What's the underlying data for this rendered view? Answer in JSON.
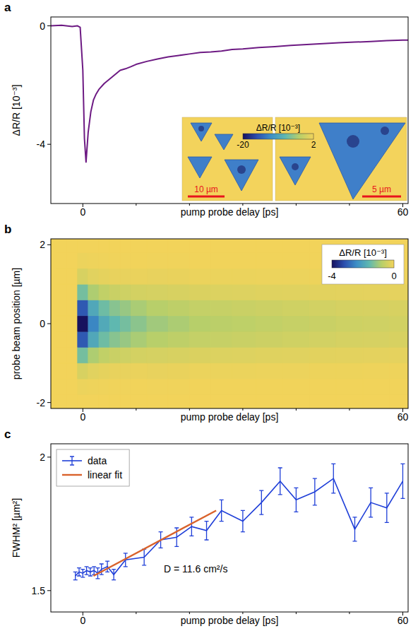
{
  "chart_data": [
    {
      "type": "line",
      "panel_label": "a",
      "x_label": "pump probe delay [ps]",
      "y_label": "ΔR/R [10⁻³]",
      "color": "#6d1a83",
      "x": [
        -6,
        -4,
        -2,
        -1,
        -0.5,
        0,
        0.3,
        0.6,
        1,
        1.5,
        2,
        2.5,
        3,
        4,
        5,
        6,
        7,
        8,
        9,
        10,
        12,
        14,
        16,
        18,
        20,
        22,
        24,
        26,
        28,
        30,
        33,
        36,
        39,
        42,
        45,
        48,
        51,
        54,
        57,
        60,
        61
      ],
      "values": [
        0,
        0.02,
        -0.02,
        0,
        -0.05,
        -1.5,
        -3.8,
        -4.6,
        -3.6,
        -2.9,
        -2.5,
        -2.3,
        -2.15,
        -1.95,
        -1.8,
        -1.65,
        -1.5,
        -1.45,
        -1.38,
        -1.3,
        -1.2,
        -1.12,
        -1.05,
        -1,
        -0.95,
        -0.9,
        -0.88,
        -0.85,
        -0.8,
        -0.78,
        -0.73,
        -0.7,
        -0.66,
        -0.63,
        -0.6,
        -0.57,
        -0.55,
        -0.53,
        -0.5,
        -0.48,
        -0.48
      ],
      "xlim": [
        -6,
        61
      ],
      "ylim": [
        -6,
        0.3
      ],
      "xticks": [
        0,
        60
      ],
      "minor_xticks": [
        10,
        20,
        30,
        40,
        50
      ],
      "yticks": [
        -4,
        0
      ],
      "inset": {
        "colorbar": {
          "label": "ΔR/R [10⁻³]",
          "range": [
            -20,
            2
          ],
          "ticks": [
            -20,
            2
          ]
        },
        "scale_bars": [
          {
            "label": "10 µm",
            "length": 10
          },
          {
            "label": "5 µm",
            "length": 5
          }
        ]
      }
    },
    {
      "type": "heatmap",
      "panel_label": "b",
      "x_label": "pump probe delay [ps]",
      "y_label": "probe beam position [µm]",
      "x": [
        -4,
        -2,
        0,
        2,
        4,
        6,
        8,
        10,
        14,
        18,
        22,
        26,
        30,
        35,
        40,
        45,
        50,
        55,
        60
      ],
      "y": [
        -2,
        -1.6,
        -1.2,
        -0.8,
        -0.4,
        0,
        0.4,
        0.8,
        1.2,
        1.6,
        2
      ],
      "cells": [
        [
          0,
          0,
          0,
          0,
          0,
          0,
          0,
          0,
          0,
          0,
          0,
          0,
          0,
          0,
          0,
          0,
          0,
          0,
          0
        ],
        [
          0,
          0,
          -0.08,
          -0.05,
          -0.04,
          -0.03,
          -0.03,
          -0.02,
          -0.03,
          -0.03,
          -0.02,
          -0.02,
          -0.02,
          -0.02,
          -0.02,
          -0.02,
          -0.02,
          -0.01,
          -0.01
        ],
        [
          0,
          0,
          -0.36,
          -0.23,
          -0.17,
          -0.14,
          -0.13,
          -0.11,
          -0.13,
          -0.12,
          -0.1,
          -0.1,
          -0.09,
          -0.08,
          -0.08,
          -0.07,
          -0.07,
          -0.06,
          -0.06
        ],
        [
          0,
          0,
          -1.4,
          -0.88,
          -0.67,
          -0.56,
          -0.49,
          -0.42,
          -0.4,
          -0.36,
          -0.32,
          -0.3,
          -0.28,
          -0.26,
          -0.24,
          -0.22,
          -0.2,
          -0.19,
          -0.18
        ],
        [
          0,
          0,
          -3.08,
          -1.93,
          -1.46,
          -1.23,
          -1.08,
          -0.92,
          -0.79,
          -0.71,
          -0.63,
          -0.59,
          -0.55,
          -0.51,
          -0.47,
          -0.43,
          -0.4,
          -0.38,
          -0.36
        ],
        [
          0,
          0,
          -4,
          -2.5,
          -1.9,
          -1.6,
          -1.4,
          -1.2,
          -1,
          -0.9,
          -0.8,
          -0.75,
          -0.7,
          -0.65,
          -0.6,
          -0.55,
          -0.5,
          -0.48,
          -0.45
        ],
        [
          0,
          0,
          -3.08,
          -1.93,
          -1.46,
          -1.23,
          -1.08,
          -0.92,
          -0.79,
          -0.71,
          -0.63,
          -0.59,
          -0.55,
          -0.51,
          -0.47,
          -0.43,
          -0.4,
          -0.38,
          -0.36
        ],
        [
          0,
          0,
          -1.4,
          -0.88,
          -0.67,
          -0.56,
          -0.49,
          -0.42,
          -0.4,
          -0.36,
          -0.32,
          -0.3,
          -0.28,
          -0.26,
          -0.24,
          -0.22,
          -0.2,
          -0.19,
          -0.18
        ],
        [
          0,
          0,
          -0.36,
          -0.23,
          -0.17,
          -0.14,
          -0.13,
          -0.11,
          -0.13,
          -0.12,
          -0.1,
          -0.1,
          -0.09,
          -0.08,
          -0.08,
          -0.07,
          -0.07,
          -0.06,
          -0.06
        ],
        [
          0,
          0,
          -0.08,
          -0.05,
          -0.04,
          -0.03,
          -0.03,
          -0.02,
          -0.03,
          -0.03,
          -0.02,
          -0.02,
          -0.02,
          -0.02,
          -0.02,
          -0.02,
          -0.02,
          -0.01,
          -0.01
        ],
        [
          0,
          0,
          0,
          0,
          0,
          0,
          0,
          0,
          0,
          0,
          0,
          0,
          0,
          0,
          0,
          0,
          0,
          0,
          0
        ]
      ],
      "xlim": [
        -6,
        61
      ],
      "ylim": [
        -2.15,
        2.15
      ],
      "xticks": [
        0,
        60
      ],
      "minor_xticks": [
        10,
        20,
        30,
        40,
        50
      ],
      "yticks": [
        -2,
        0,
        2
      ],
      "colorbar": {
        "label": "ΔR/R [10⁻³]",
        "range": [
          -4,
          0
        ],
        "ticks": [
          -4,
          0
        ]
      }
    },
    {
      "type": "line",
      "panel_label": "c",
      "x_label": "pump probe delay [ps]",
      "y_label": "FWHM² [µm²]",
      "series": [
        {
          "name": "data",
          "color": "#1f3fd8",
          "x": [
            -1.4,
            -0.7,
            0,
            0.7,
            1.4,
            2.1,
            2.8,
            3.5,
            4.6,
            5.8,
            8,
            11.5,
            14.6,
            17.6,
            20.4,
            23.2,
            26,
            30,
            33.5,
            37,
            40,
            43.5,
            47,
            51,
            54,
            57,
            60
          ],
          "values": [
            1.555,
            1.57,
            1.565,
            1.575,
            1.57,
            1.575,
            1.565,
            1.58,
            1.59,
            1.56,
            1.615,
            1.625,
            1.69,
            1.7,
            1.74,
            1.725,
            1.8,
            1.76,
            1.83,
            1.91,
            1.84,
            1.87,
            1.92,
            1.73,
            1.83,
            1.81,
            1.91
          ],
          "errors": [
            0.015,
            0.015,
            0.015,
            0.015,
            0.015,
            0.015,
            0.02,
            0.02,
            0.02,
            0.02,
            0.025,
            0.03,
            0.03,
            0.035,
            0.035,
            0.035,
            0.04,
            0.04,
            0.045,
            0.05,
            0.045,
            0.05,
            0.055,
            0.045,
            0.055,
            0.055,
            0.065
          ]
        },
        {
          "name": "linear fit",
          "color": "#d9622b",
          "line_style": "solid",
          "x": [
            2,
            25
          ],
          "values": [
            1.555,
            1.8
          ]
        }
      ],
      "annotation": "D = 11.6 cm²/s",
      "legend": "upper left",
      "xlim": [
        -6,
        61
      ],
      "ylim": [
        1.42,
        2.05
      ],
      "xticks": [
        0,
        60
      ],
      "minor_xticks": [
        10,
        20,
        30,
        40,
        50
      ],
      "yticks": [
        1.5,
        2
      ]
    }
  ]
}
